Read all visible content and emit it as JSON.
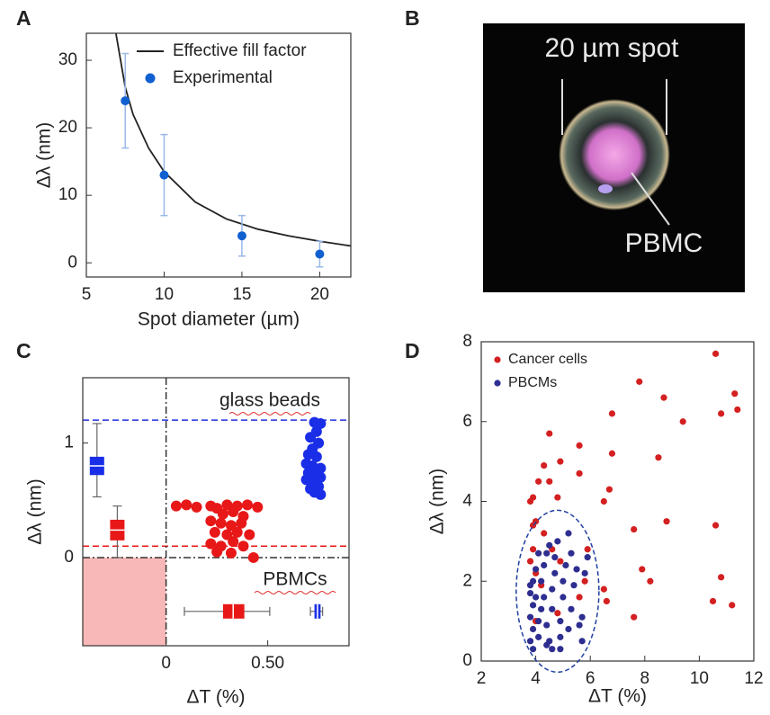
{
  "chart_data": [
    {
      "type": "line",
      "panel": "A",
      "xlabel": "Spot diameter (µm)",
      "ylabel": "Δλ (nm)",
      "xlim": [
        5,
        22
      ],
      "ylim": [
        -2.1,
        34
      ],
      "xticks": [
        5,
        10,
        15,
        20
      ],
      "yticks": [
        0,
        10,
        20,
        30
      ],
      "legend": "upper right",
      "series": [
        {
          "name": "Effective fill factor",
          "type": "line",
          "color": "#222222",
          "x": [
            6.9,
            7.5,
            8,
            9,
            10,
            12,
            14,
            16,
            18,
            20,
            22
          ],
          "values": [
            34,
            26,
            22,
            17,
            13.5,
            9,
            6.5,
            5,
            4,
            3.2,
            2.5
          ]
        },
        {
          "name": "Experimental",
          "type": "scatter",
          "color": "#1060d0",
          "error_color": "#9ab8e8",
          "x": [
            7.5,
            10,
            15,
            20
          ],
          "values": [
            24,
            13,
            4,
            1.3
          ],
          "errors": [
            7,
            6,
            3,
            1.9
          ]
        }
      ]
    },
    {
      "type": "scatter",
      "panel": "C",
      "xlabel": "ΔT (%)",
      "ylabel": "Δλ (nm)",
      "xlim": [
        -0.41,
        0.9
      ],
      "ylim": [
        -0.77,
        1.57
      ],
      "xticks": [
        0,
        {
          "value": 0.5,
          "label": "0.50"
        }
      ],
      "yticks": [
        0,
        1
      ],
      "annotations": [
        "glass beads",
        "PBMCs"
      ],
      "hlines": [
        {
          "value": 1.2,
          "color": "#2030e0",
          "style": "dashed"
        },
        {
          "value": 0.1,
          "color": "#e81818",
          "style": "dashed"
        },
        {
          "value": 0,
          "color": "#333333",
          "style": "dashdot"
        }
      ],
      "vlines": [
        {
          "value": 0,
          "color": "#333333",
          "style": "dashdot"
        }
      ],
      "shaded": {
        "x_to": 0,
        "y_to": 0,
        "color": "#f8b8b8"
      },
      "series": [
        {
          "type": "scatter",
          "color": "#e81818",
          "x": [
            0.05,
            0.1,
            0.15,
            0.22,
            0.25,
            0.3,
            0.35,
            0.4,
            0.45,
            0.28,
            0.33,
            0.38,
            0.22,
            0.27,
            0.32,
            0.37,
            0.24,
            0.3,
            0.35,
            0.41,
            0.22,
            0.27,
            0.33,
            0.38,
            0.25,
            0.32,
            0.43
          ],
          "values": [
            0.45,
            0.46,
            0.44,
            0.45,
            0.43,
            0.46,
            0.45,
            0.46,
            0.44,
            0.38,
            0.4,
            0.36,
            0.32,
            0.3,
            0.28,
            0.3,
            0.22,
            0.2,
            0.22,
            0.2,
            0.12,
            0.1,
            0.14,
            0.1,
            0.05,
            0.04,
            0.0
          ]
        },
        {
          "type": "scatter",
          "color": "#1a2ee8",
          "x": [
            0.73,
            0.76,
            0.74,
            0.71,
            0.75,
            0.72,
            0.7,
            0.74,
            0.69,
            0.72,
            0.76,
            0.7,
            0.73,
            0.76,
            0.69,
            0.72,
            0.75,
            0.71,
            0.73,
            0.76
          ],
          "values": [
            1.18,
            1.17,
            1.1,
            1.05,
            1.0,
            0.95,
            0.9,
            0.88,
            0.82,
            0.8,
            0.78,
            0.74,
            0.72,
            0.7,
            0.68,
            0.65,
            0.62,
            0.6,
            0.57,
            0.55
          ]
        }
      ],
      "boxes": [
        {
          "color": "#1a2ee8",
          "orientation": "vertical",
          "position": -0.34,
          "whisker_low": 0.53,
          "q1": 0.72,
          "median": 0.8,
          "q3": 0.88,
          "whisker_high": 1.17
        },
        {
          "color": "#e81818",
          "orientation": "vertical",
          "position": -0.24,
          "whisker_low": 0.0,
          "q1": 0.15,
          "median": 0.24,
          "q3": 0.33,
          "whisker_high": 0.45
        },
        {
          "color": "#e81818",
          "orientation": "horizontal",
          "position": -0.47,
          "whisker_low": 0.09,
          "q1": 0.28,
          "median": 0.33,
          "q3": 0.385,
          "whisker_high": 0.51
        },
        {
          "color": "#1a2ee8",
          "orientation": "horizontal",
          "position": -0.47,
          "whisker_low": 0.71,
          "q1": 0.73,
          "median": 0.745,
          "q3": 0.76,
          "whisker_high": 0.77
        }
      ]
    },
    {
      "type": "scatter",
      "panel": "D",
      "xlabel": "ΔT (%)",
      "ylabel": "Δλ (nm)",
      "xlim": [
        2,
        12
      ],
      "ylim": [
        0,
        8
      ],
      "xticks": [
        2,
        4,
        6,
        8,
        10,
        12
      ],
      "yticks": [
        0,
        2,
        4,
        6,
        8
      ],
      "legend": "upper left",
      "series": [
        {
          "name": "Cancer cells",
          "type": "scatter",
          "color": "#d42020",
          "x": [
            4.5,
            4.3,
            4.8,
            4.9,
            5.6,
            5.6,
            6.5,
            6.7,
            6.8,
            6.8,
            7.8,
            8.7,
            9.4,
            10.6,
            10.8,
            11.3,
            11.4,
            8.5,
            7.6,
            7.9,
            8.2,
            8.8,
            10.6,
            10.8,
            10.5,
            11.2,
            7.6,
            6.6,
            5.9,
            5.8,
            6.5,
            3.8,
            3.9,
            4.1,
            4.5,
            4.0,
            3.9,
            4.3,
            3.9,
            3.8,
            4.0,
            4.6,
            4.2,
            4.8,
            4.0,
            5.6,
            4.9
          ],
          "values": [
            5.7,
            4.9,
            4.1,
            5.0,
            5.4,
            4.7,
            4.0,
            4.3,
            5.2,
            6.2,
            7.0,
            6.6,
            6.0,
            7.7,
            6.2,
            6.7,
            6.3,
            5.1,
            3.3,
            2.3,
            2.0,
            3.5,
            3.4,
            2.1,
            1.5,
            1.4,
            1.1,
            1.5,
            2.8,
            2.0,
            1.8,
            4.0,
            4.1,
            4.5,
            4.5,
            3.5,
            3.4,
            3.2,
            2.8,
            2.5,
            2.2,
            2.8,
            1.9,
            1.2,
            1.0,
            1.6,
            2.5
          ]
        },
        {
          "name": "PBCMs",
          "type": "scatter",
          "color": "#2e2e90",
          "x": [
            3.8,
            3.9,
            3.8,
            3.9,
            3.8,
            3.9,
            4.0,
            3.9,
            4.1,
            4.1,
            4.2,
            4.0,
            4.2,
            4.3,
            4.4,
            4.4,
            4.5,
            4.6,
            4.6,
            4.7,
            4.7,
            4.8,
            4.9,
            4.9,
            5.0,
            5.0,
            5.1,
            5.2,
            5.2,
            5.3,
            5.4,
            5.5,
            5.6,
            5.7,
            5.7,
            5.8,
            4.4,
            4.5,
            4.3,
            4.1,
            3.8,
            4.9,
            5.3,
            5.9,
            4.6
          ],
          "values": [
            0.5,
            0.8,
            1.1,
            1.4,
            1.7,
            2.0,
            2.3,
            0.3,
            0.6,
            1.0,
            1.3,
            1.6,
            2.0,
            2.4,
            2.7,
            0.9,
            0.5,
            1.3,
            1.8,
            2.2,
            2.6,
            3.0,
            0.6,
            1.0,
            1.6,
            2.0,
            2.4,
            3.2,
            0.8,
            1.3,
            1.9,
            2.3,
            0.9,
            0.5,
            1.1,
            2.2,
            0.4,
            2.9,
            1.6,
            2.7,
            1.9,
            0.3,
            2.7,
            2.6,
            0.3
          ]
        }
      ]
    }
  ],
  "image": {
    "panel": "B",
    "labels": [
      "20 µm spot",
      "PBMC"
    ]
  }
}
